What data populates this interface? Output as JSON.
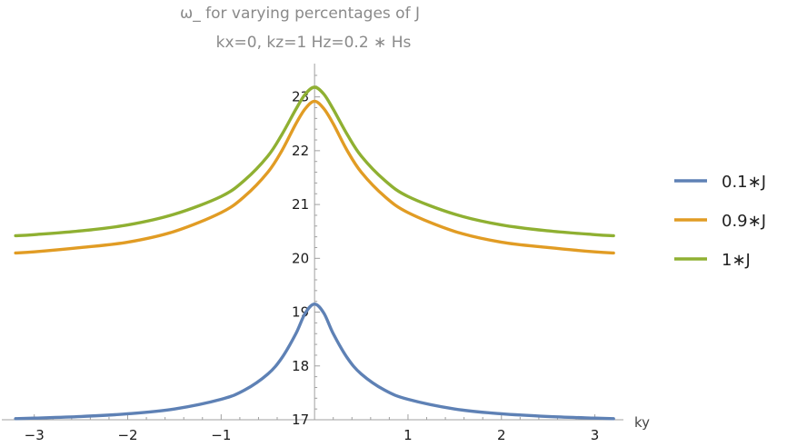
{
  "chart_data": {
    "type": "line",
    "title": "ω_ for varying percentages of J",
    "subtitle": "kx=0, kz=1 Hz=0.2 ∗ Hs",
    "xlabel": "ky",
    "ylabel": "",
    "xlim": [
      -3.25,
      3.15
    ],
    "ylim": [
      17.0,
      23.45
    ],
    "x_ticks": [
      -3,
      -2,
      -1,
      1,
      2,
      3
    ],
    "y_ticks": [
      17,
      18,
      19,
      20,
      21,
      22,
      23
    ],
    "grid": false,
    "legend_position": "right",
    "x": [
      -3.2,
      -3.0,
      -2.5,
      -2.0,
      -1.5,
      -1.0,
      -0.75,
      -0.5,
      -0.35,
      -0.2,
      -0.1,
      0.0,
      0.1,
      0.2,
      0.35,
      0.5,
      0.75,
      1.0,
      1.5,
      2.0,
      2.5,
      3.0,
      3.2
    ],
    "series": [
      {
        "name": "0.1∗J",
        "color": "#5e81b5",
        "values": [
          17.02,
          17.03,
          17.06,
          17.11,
          17.2,
          17.38,
          17.55,
          17.85,
          18.15,
          18.6,
          18.98,
          19.15,
          18.98,
          18.6,
          18.15,
          17.85,
          17.55,
          17.38,
          17.2,
          17.11,
          17.06,
          17.03,
          17.02
        ]
      },
      {
        "name": "0.9∗J",
        "color": "#e19c24",
        "values": [
          20.1,
          20.12,
          20.2,
          20.3,
          20.5,
          20.85,
          21.15,
          21.6,
          22.0,
          22.5,
          22.78,
          22.92,
          22.78,
          22.5,
          22.0,
          21.6,
          21.15,
          20.85,
          20.5,
          20.3,
          20.2,
          20.12,
          20.1
        ]
      },
      {
        "name": "1∗J",
        "color": "#8fb032",
        "values": [
          20.42,
          20.44,
          20.51,
          20.62,
          20.82,
          21.15,
          21.45,
          21.9,
          22.3,
          22.77,
          23.05,
          23.18,
          23.05,
          22.77,
          22.3,
          21.9,
          21.45,
          21.15,
          20.82,
          20.62,
          20.51,
          20.44,
          20.42
        ]
      }
    ]
  }
}
